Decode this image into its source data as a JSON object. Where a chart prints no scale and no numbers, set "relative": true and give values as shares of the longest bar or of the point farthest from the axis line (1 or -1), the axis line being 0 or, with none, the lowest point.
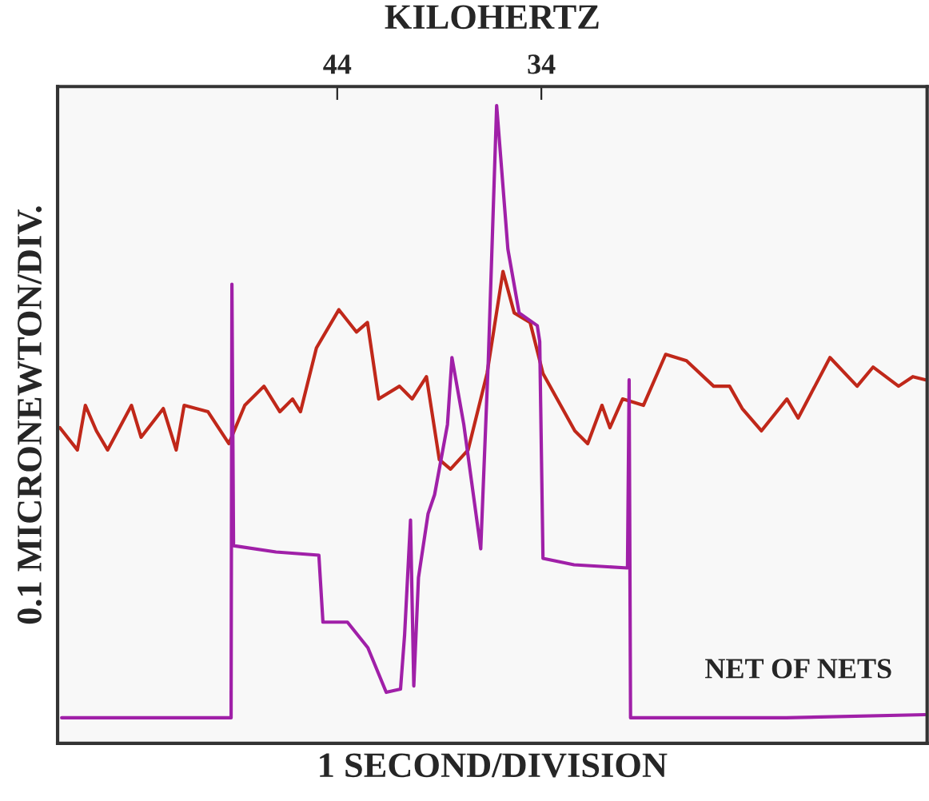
{
  "chart_data": {
    "type": "line",
    "relative": true,
    "xlabel": "1 SECOND/DIVISION",
    "x2label": "KILOHERTZ",
    "ylabel": "0.1 MICRONEWTON/DIV.",
    "xlim": [
      57.7,
      15.1
    ],
    "xticks": [
      44,
      34
    ],
    "tick_labels": "x",
    "annotations": [
      "NET OF NETS"
    ],
    "series": [
      {
        "color": "#c0281a",
        "x": [
          57.59,
          56.73,
          56.34,
          55.8,
          55.25,
          54.08,
          53.61,
          52.52,
          51.89,
          51.5,
          50.33,
          49.31,
          48.53,
          47.59,
          46.81,
          46.19,
          45.8,
          45.02,
          43.92,
          43.06,
          42.52,
          41.97,
          40.95,
          40.33,
          39.63,
          39.0,
          38.45,
          37.59,
          36.66,
          35.88,
          35.33,
          34.55,
          33.92,
          32.36,
          31.73,
          31.03,
          30.64,
          30.02,
          29.0,
          27.91,
          26.89,
          25.56,
          24.78,
          24.16,
          23.22,
          21.97,
          21.42,
          19.86,
          18.53,
          17.75,
          16.5,
          15.8,
          15.17
        ],
        "values": [
          0.495,
          0.46,
          0.53,
          0.49,
          0.46,
          0.53,
          0.48,
          0.525,
          0.46,
          0.53,
          0.52,
          0.47,
          0.53,
          0.56,
          0.52,
          0.54,
          0.52,
          0.62,
          0.68,
          0.645,
          0.66,
          0.54,
          0.56,
          0.54,
          0.575,
          0.445,
          0.43,
          0.46,
          0.58,
          0.74,
          0.675,
          0.66,
          0.58,
          0.49,
          0.47,
          0.53,
          0.495,
          0.54,
          0.53,
          0.61,
          0.6,
          0.56,
          0.56,
          0.525,
          0.49,
          0.54,
          0.51,
          0.605,
          0.56,
          0.59,
          0.56,
          0.575,
          0.57
        ]
      },
      {
        "color": "#a020a8",
        "x": [
          57.5,
          49.2,
          49.16,
          49.08,
          47.0,
          44.9,
          44.7,
          43.5,
          42.5,
          41.6,
          40.9,
          40.7,
          40.41,
          40.25,
          40.02,
          39.55,
          39.23,
          38.6,
          38.38,
          37.8,
          36.97,
          36.6,
          36.19,
          35.64,
          35.09,
          34.2,
          34.08,
          33.92,
          32.4,
          29.78,
          29.7,
          29.63,
          22.0,
          15.2
        ],
        "values": [
          0.04,
          0.04,
          0.72,
          0.31,
          0.3,
          0.295,
          0.19,
          0.19,
          0.15,
          0.08,
          0.085,
          0.17,
          0.35,
          0.09,
          0.26,
          0.36,
          0.39,
          0.5,
          0.605,
          0.5,
          0.305,
          0.6,
          1.0,
          0.775,
          0.675,
          0.655,
          0.63,
          0.29,
          0.28,
          0.275,
          0.57,
          0.04,
          0.04,
          0.045
        ]
      }
    ]
  }
}
